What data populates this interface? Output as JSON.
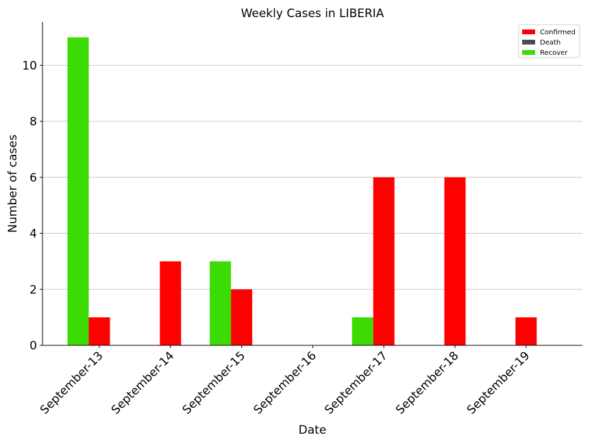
{
  "chart_data": {
    "type": "bar",
    "title": "Weekly Cases in LIBERIA",
    "xlabel": "Date",
    "ylabel": "Number of cases",
    "categories": [
      "September-13",
      "September-14",
      "September-15",
      "September-16",
      "September-17",
      "September-18",
      "September-19"
    ],
    "series": [
      {
        "name": "Recover",
        "color": "#3ddb04",
        "values": [
          11,
          0,
          3,
          0,
          1,
          0,
          0
        ]
      },
      {
        "name": "Confirmed",
        "color": "#ff0000",
        "values": [
          1,
          3,
          2,
          0,
          6,
          6,
          1
        ]
      },
      {
        "name": "Death",
        "color": "#4d4d4d",
        "values": [
          0,
          0,
          0,
          0,
          0,
          0,
          0
        ]
      }
    ],
    "legend": [
      "Confirmed",
      "Death",
      "Recover"
    ],
    "legend_placement": "top-right",
    "ylim": [
      0,
      11.55
    ],
    "yticks": [
      0,
      2,
      4,
      6,
      8,
      10
    ],
    "grid": "y"
  }
}
